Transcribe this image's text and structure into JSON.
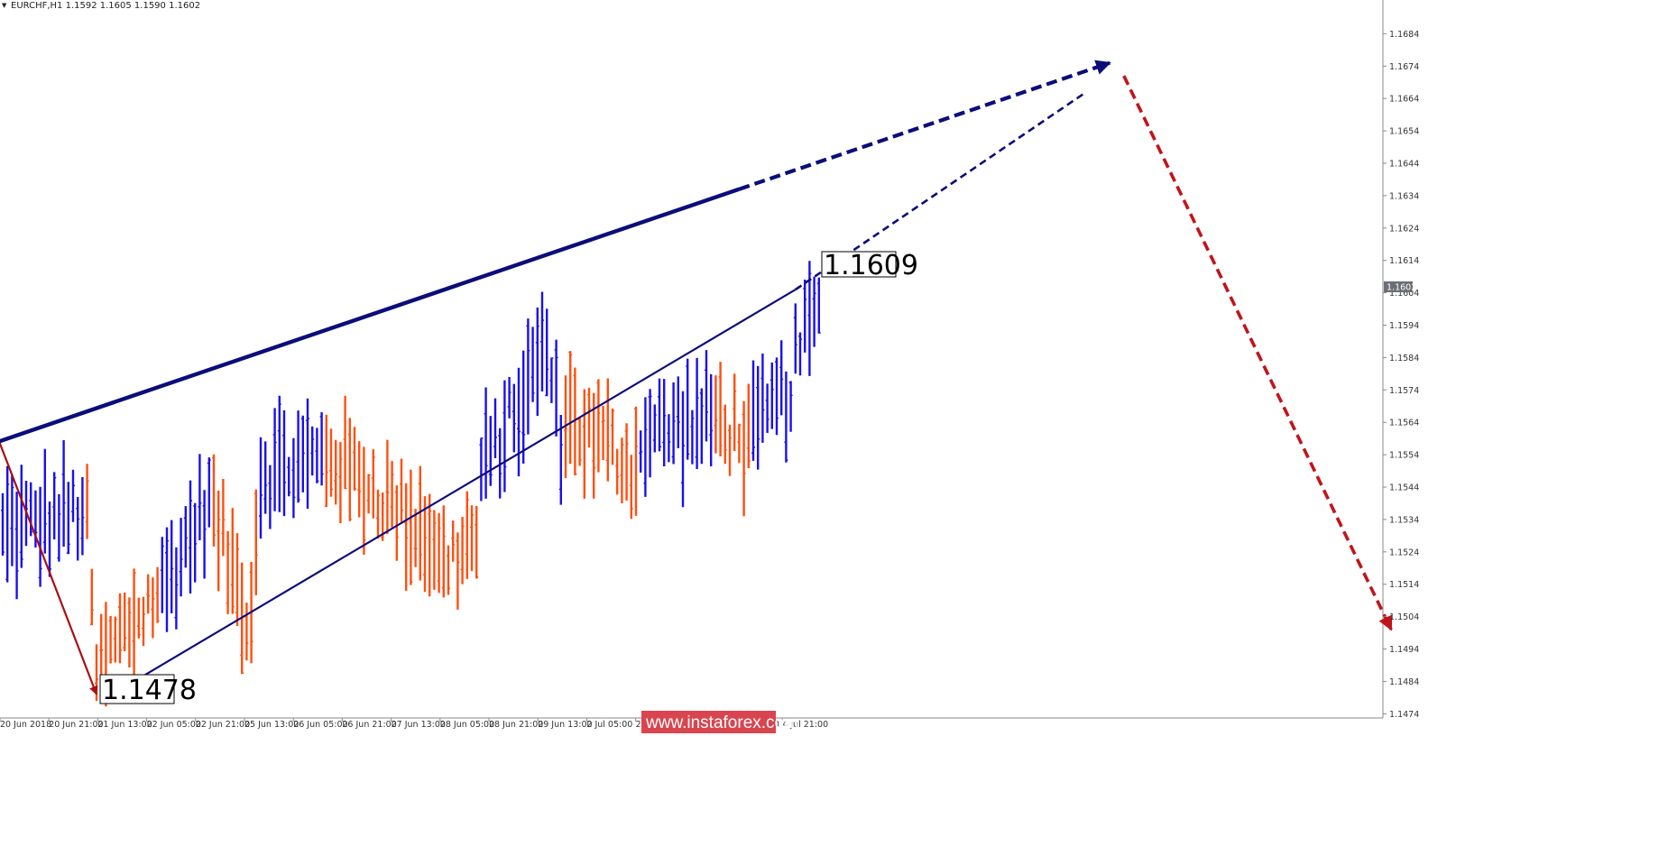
{
  "chart_data": {
    "type": "bar",
    "title": "EURCHF,H1  1.1592 1.1605 1.1590 1.1602",
    "symbol": "EURCHF",
    "timeframe": "H1",
    "ohlc_readout": {
      "open": 1.1592,
      "high": 1.1605,
      "low": 1.159,
      "close": 1.1602
    },
    "current_price": "1.1602",
    "ylim": [
      1.1468,
      1.1708
    ],
    "y_ticks": [
      "1.1684",
      "1.1674",
      "1.1664",
      "1.1654",
      "1.1644",
      "1.1634",
      "1.1624",
      "1.1614",
      "1.1604",
      "1.1594",
      "1.1584",
      "1.1574",
      "1.1564",
      "1.1554",
      "1.1544",
      "1.1534",
      "1.1524",
      "1.1514",
      "1.1504",
      "1.1494",
      "1.1484",
      "1.1474"
    ],
    "x_ticks": [
      "20 Jun 2018",
      "20 Jun 21:00",
      "21 Jun 13:00",
      "22 Jun 05:00",
      "22 Jun 21:00",
      "25 Jun 13:00",
      "26 Jun 05:00",
      "26 Jun 21:00",
      "27 Jun 13:00",
      "28 Jun 05:00",
      "28 Jun 21:00",
      "29 Jun 13:00",
      "2 Jul 05:00",
      "2 Jul 21:00",
      "3 Jul 13:00",
      "4 Jul 05:00",
      "4 Jul 21:00"
    ],
    "bar_count": 175,
    "bar_colors": {
      "up": "#1a10ee",
      "down": "#ff4f0f"
    },
    "segments": [
      {
        "from": 0,
        "to": 17,
        "start": 1.153,
        "end": 1.1537,
        "color": "up"
      },
      {
        "from": 18,
        "to": 20,
        "start": 1.1532,
        "end": 1.148,
        "color": "down"
      },
      {
        "from": 21,
        "to": 33,
        "start": 1.149,
        "end": 1.1512,
        "color": "down"
      },
      {
        "from": 34,
        "to": 44,
        "start": 1.1512,
        "end": 1.154,
        "color": "up"
      },
      {
        "from": 45,
        "to": 52,
        "start": 1.1535,
        "end": 1.1506,
        "color": "down"
      },
      {
        "from": 53,
        "to": 54,
        "start": 1.1506,
        "end": 1.153,
        "color": "down"
      },
      {
        "from": 55,
        "to": 68,
        "start": 1.1548,
        "end": 1.1553,
        "color": "up"
      },
      {
        "from": 69,
        "to": 92,
        "start": 1.1555,
        "end": 1.1528,
        "color": "down"
      },
      {
        "from": 93,
        "to": 101,
        "start": 1.152,
        "end": 1.1528,
        "color": "down"
      },
      {
        "from": 102,
        "to": 114,
        "start": 1.1548,
        "end": 1.158,
        "color": "up"
      },
      {
        "from": 115,
        "to": 119,
        "start": 1.1592,
        "end": 1.156,
        "color": "up"
      },
      {
        "from": 120,
        "to": 135,
        "start": 1.1566,
        "end": 1.155,
        "color": "down"
      },
      {
        "from": 136,
        "to": 151,
        "start": 1.156,
        "end": 1.1565,
        "color": "up"
      },
      {
        "from": 152,
        "to": 159,
        "start": 1.1566,
        "end": 1.1558,
        "color": "down"
      },
      {
        "from": 160,
        "to": 168,
        "start": 1.156,
        "end": 1.1575,
        "color": "up"
      },
      {
        "from": 169,
        "to": 174,
        "start": 1.1582,
        "end": 1.1602,
        "color": "up"
      }
    ],
    "wave_markup": {
      "low": {
        "label": "1.1478",
        "bar": 20,
        "price": 1.1478
      },
      "high": {
        "label": "1.1609",
        "bar": 173,
        "price": 1.1609
      },
      "arrows": [
        {
          "name": "decline-arrow",
          "style": "solid",
          "color": "#a80f14",
          "from": {
            "bar": -1,
            "price": 1.1559
          },
          "to": {
            "bar": 20,
            "price": 1.148
          }
        },
        {
          "name": "major-trend-line",
          "style": "solid-then-dashed",
          "color": "#0b0d7a",
          "from": {
            "bar": -1,
            "price": 1.1558
          },
          "split": {
            "bar": 157,
            "price": 1.1636
          },
          "to": {
            "bar": 236,
            "price": 1.1675
          }
        },
        {
          "name": "inner-trend-line",
          "style": "solid-then-dashed",
          "color": "#0b0d7a",
          "from": {
            "bar": 21,
            "price": 1.1478
          },
          "split": {
            "bar": 169,
            "price": 1.1605
          },
          "to": {
            "bar": 231,
            "price": 1.1666
          }
        },
        {
          "name": "forecast-arrow",
          "style": "dashed",
          "color": "#c1141a",
          "from": {
            "bar": 239,
            "price": 1.1671
          },
          "to": {
            "bar": 296,
            "price": 1.15
          }
        }
      ]
    },
    "watermark": "www.instaforex.com"
  }
}
